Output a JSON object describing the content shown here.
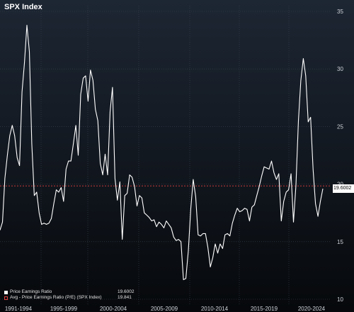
{
  "chart_data": {
    "type": "line",
    "title": "SPX Index",
    "ylim": [
      10,
      35
    ],
    "yticks": [
      10,
      15,
      20,
      25,
      30,
      35
    ],
    "x_labels": [
      "1991-1994",
      "1995-1999",
      "2000-2004",
      "2005-2009",
      "2010-2014",
      "2015-2019",
      "2020-2024"
    ],
    "series": [
      {
        "name": "Price Earnings Ratio",
        "color": "#ffffff",
        "last_value": "19.6002",
        "values": [
          16.0,
          16.7,
          20.5,
          22.5,
          24.2,
          25.1,
          24.2,
          22.3,
          21.6,
          28.0,
          30.5,
          33.8,
          31.5,
          23.5,
          19.0,
          19.3,
          17.5,
          16.5,
          16.6,
          16.5,
          16.6,
          17.0,
          18.3,
          19.5,
          19.3,
          19.7,
          18.5,
          21.3,
          22.0,
          22.0,
          23.5,
          25.1,
          22.5,
          27.8,
          29.2,
          29.4,
          27.2,
          29.9,
          29.0,
          26.5,
          25.5,
          21.8,
          20.8,
          22.6,
          20.8,
          26.3,
          28.4,
          20.5,
          18.6,
          20.2,
          15.2,
          19.0,
          19.2,
          20.8,
          20.6,
          19.8,
          18.1,
          19.0,
          18.8,
          17.5,
          17.3,
          17.1,
          16.8,
          16.9,
          16.3,
          16.7,
          16.5,
          16.2,
          16.8,
          16.5,
          16.2,
          15.4,
          15.1,
          15.2,
          15.0,
          11.7,
          11.8,
          14.2,
          17.9,
          20.4,
          18.9,
          15.6,
          15.5,
          15.7,
          15.7,
          14.5,
          12.8,
          13.6,
          14.8,
          14.0,
          14.8,
          14.4,
          15.6,
          15.7,
          15.5,
          16.6,
          17.3,
          17.9,
          17.6,
          17.7,
          17.9,
          17.8,
          16.8,
          18.0,
          18.2,
          19.0,
          19.8,
          20.7,
          21.5,
          21.4,
          21.3,
          22.0,
          21.0,
          20.4,
          20.9,
          16.8,
          18.5,
          19.3,
          19.5,
          20.9,
          16.7,
          19.9,
          25.5,
          29.0,
          30.9,
          29.4,
          25.4,
          25.8,
          21.3,
          18.3,
          17.2,
          18.5,
          19.6
        ],
        "date_range": [
          "1991",
          "2024"
        ]
      },
      {
        "name": "Avg - Price Earnings Ratio (P/E) (SPX Index)",
        "color": "#e04040",
        "value": 19.841,
        "value_label": "19.841"
      }
    ],
    "grid": true,
    "legend_position": "bottom-left"
  }
}
